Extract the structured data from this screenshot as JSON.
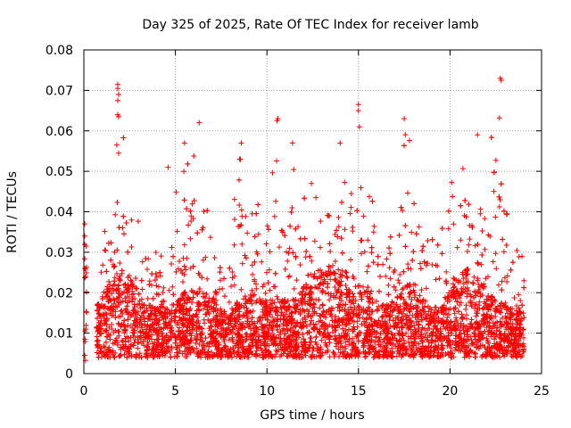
{
  "chart_data": {
    "type": "scatter",
    "title": "Day 325 of 2025, Rate Of TEC Index for receiver lamb",
    "xlabel": "GPS time / hours",
    "ylabel": "ROTI / TECUs",
    "xlim": [
      0,
      25
    ],
    "ylim": [
      0,
      0.08
    ],
    "xticks": [
      "0",
      "5",
      "10",
      "15",
      "20",
      "25"
    ],
    "yticks": [
      "0",
      "0.01",
      "0.02",
      "0.03",
      "0.04",
      "0.05",
      "0.06",
      "0.07",
      "0.08"
    ],
    "grid": true,
    "legend": "none",
    "marker": "plus",
    "color": "#ff0000",
    "density_profile": {
      "hours": [
        0.05,
        0.8,
        1.5,
        2.0,
        2.5,
        3.0,
        3.5,
        4.0,
        4.5,
        5.0,
        5.5,
        6.0,
        6.5,
        7.0,
        7.5,
        8.0,
        8.5,
        9.0,
        9.5,
        10.0,
        10.5,
        11.0,
        11.5,
        12.0,
        12.5,
        13.0,
        13.5,
        14.0,
        14.5,
        15.0,
        15.5,
        16.0,
        16.5,
        17.0,
        17.5,
        18.0,
        18.5,
        19.0,
        19.5,
        20.0,
        20.5,
        21.0,
        21.5,
        22.0,
        22.5,
        23.0,
        23.5,
        24.0
      ],
      "typical_roti": [
        0.012,
        0.012,
        0.018,
        0.02,
        0.018,
        0.015,
        0.012,
        0.011,
        0.011,
        0.012,
        0.015,
        0.016,
        0.015,
        0.013,
        0.011,
        0.011,
        0.013,
        0.015,
        0.014,
        0.013,
        0.014,
        0.013,
        0.013,
        0.016,
        0.019,
        0.02,
        0.021,
        0.02,
        0.019,
        0.017,
        0.015,
        0.013,
        0.012,
        0.013,
        0.016,
        0.017,
        0.014,
        0.011,
        0.012,
        0.016,
        0.019,
        0.02,
        0.018,
        0.015,
        0.013,
        0.012,
        0.011,
        0.01
      ],
      "upper_envelope": [
        0.037,
        0.03,
        0.047,
        0.072,
        0.045,
        0.042,
        0.035,
        0.03,
        0.035,
        0.051,
        0.057,
        0.062,
        0.047,
        0.035,
        0.03,
        0.032,
        0.057,
        0.047,
        0.045,
        0.045,
        0.063,
        0.045,
        0.057,
        0.043,
        0.05,
        0.055,
        0.057,
        0.055,
        0.056,
        0.066,
        0.052,
        0.045,
        0.038,
        0.035,
        0.063,
        0.055,
        0.047,
        0.045,
        0.04,
        0.047,
        0.055,
        0.059,
        0.048,
        0.045,
        0.073,
        0.043,
        0.04,
        0.035
      ]
    },
    "notable_points": [
      {
        "x": 0.05,
        "y": 0.037
      },
      {
        "x": 0.05,
        "y": 0.034
      },
      {
        "x": 0.05,
        "y": 0.0045
      },
      {
        "x": 1.85,
        "y": 0.0715
      },
      {
        "x": 1.85,
        "y": 0.0705
      },
      {
        "x": 1.9,
        "y": 0.069
      },
      {
        "x": 1.85,
        "y": 0.0675
      },
      {
        "x": 1.9,
        "y": 0.0635
      },
      {
        "x": 1.85,
        "y": 0.064
      },
      {
        "x": 1.8,
        "y": 0.0565
      },
      {
        "x": 1.9,
        "y": 0.0545
      },
      {
        "x": 6.3,
        "y": 0.062
      },
      {
        "x": 8.6,
        "y": 0.057
      },
      {
        "x": 10.6,
        "y": 0.063
      },
      {
        "x": 10.55,
        "y": 0.0625
      },
      {
        "x": 11.4,
        "y": 0.057
      },
      {
        "x": 15.0,
        "y": 0.0665
      },
      {
        "x": 15.0,
        "y": 0.065
      },
      {
        "x": 15.05,
        "y": 0.061
      },
      {
        "x": 17.5,
        "y": 0.063
      },
      {
        "x": 21.5,
        "y": 0.059
      },
      {
        "x": 22.75,
        "y": 0.073
      },
      {
        "x": 22.8,
        "y": 0.0725
      },
      {
        "x": 22.7,
        "y": 0.0632
      },
      {
        "x": 4.6,
        "y": 0.051
      },
      {
        "x": 5.5,
        "y": 0.057
      },
      {
        "x": 14.0,
        "y": 0.057
      }
    ]
  }
}
